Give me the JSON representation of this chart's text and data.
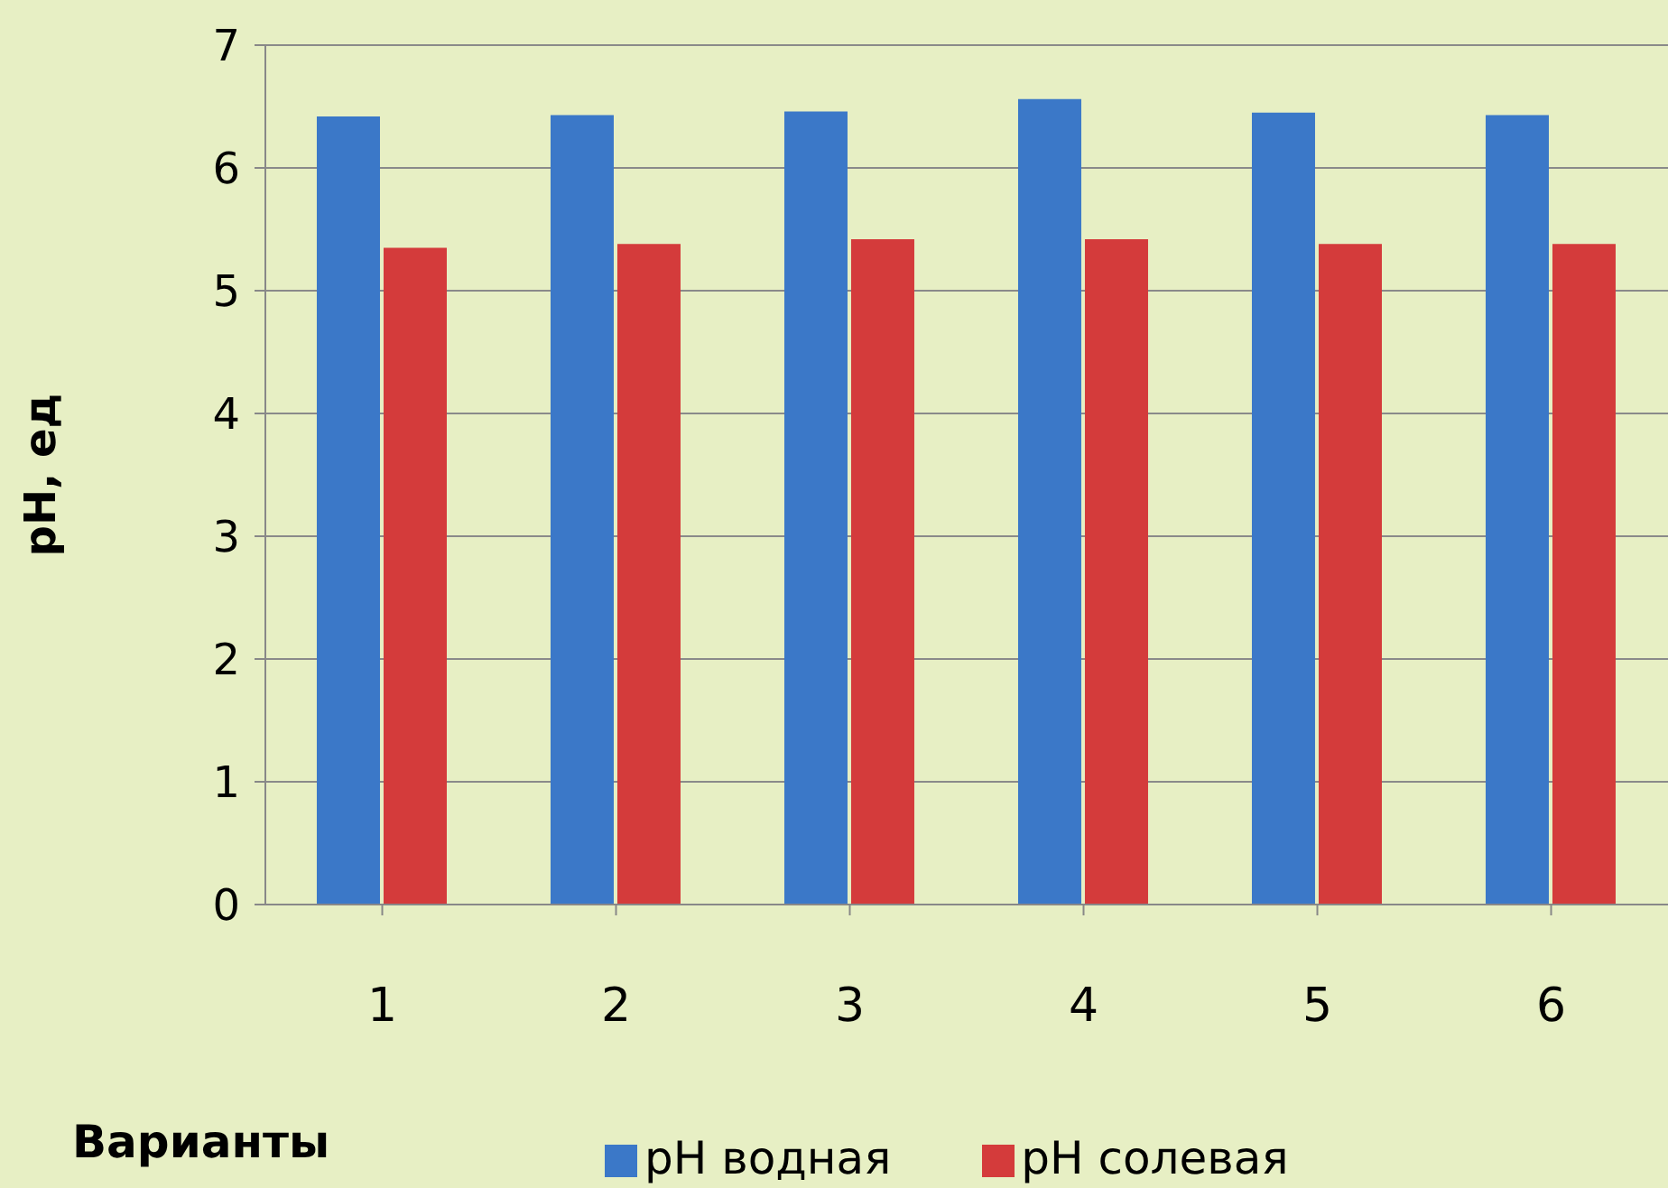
{
  "chart_data": {
    "type": "bar",
    "ylabel": "pH, ед",
    "xlabel": "Варианты",
    "categories": [
      "1",
      "2",
      "3",
      "4",
      "5",
      "6"
    ],
    "series": [
      {
        "name": "pH водная",
        "color": "#3b78c8",
        "values": [
          6.42,
          6.43,
          6.46,
          6.56,
          6.45,
          6.43
        ]
      },
      {
        "name": "pH солевая",
        "color": "#d43b3b",
        "values": [
          5.35,
          5.38,
          5.42,
          5.42,
          5.38,
          5.38
        ]
      }
    ],
    "ylim": [
      0,
      7
    ],
    "yticks": [
      0,
      1,
      2,
      3,
      4,
      5,
      6,
      7
    ],
    "grid": "y",
    "legend": "bottom"
  }
}
